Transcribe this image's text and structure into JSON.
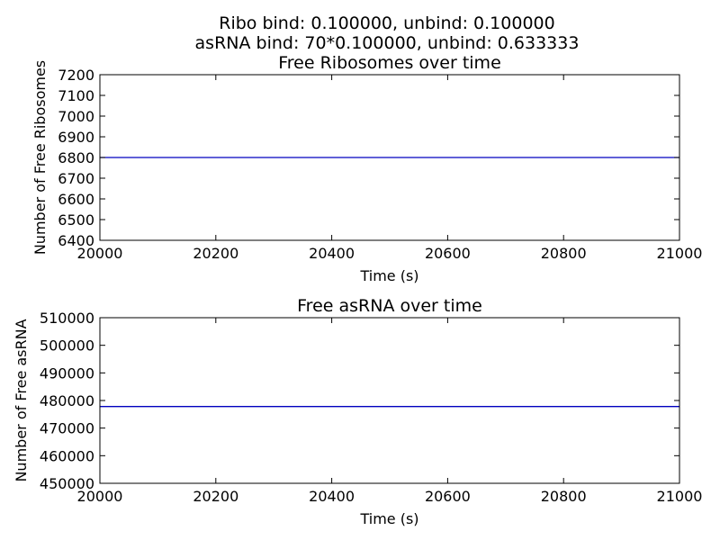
{
  "figure": {
    "suptitle_line1": "Ribo bind: 0.100000, unbind: 0.100000",
    "suptitle_line2": "asRNA bind: 70*0.100000, unbind: 0.633333"
  },
  "colors": {
    "series": "#0000bf",
    "axes": "#000000",
    "background": "#ffffff"
  },
  "chart_data": [
    {
      "type": "line",
      "title": "Free Ribosomes over time",
      "xlabel": "Time (s)",
      "ylabel": "Number of Free Ribosomes",
      "xlim": [
        20000,
        21000
      ],
      "ylim": [
        6400,
        7200
      ],
      "xticks": [
        20000,
        20200,
        20400,
        20600,
        20800,
        21000
      ],
      "xtick_labels": [
        "20000",
        "20200",
        "20400",
        "20600",
        "20800",
        "21000"
      ],
      "yticks": [
        6400,
        6500,
        6600,
        6700,
        6800,
        6900,
        7000,
        7100,
        7200
      ],
      "ytick_labels": [
        "6400",
        "6500",
        "6600",
        "6700",
        "6800",
        "6900",
        "7000",
        "7100",
        "7200"
      ],
      "grid": false,
      "series": [
        {
          "name": "free ribosomes",
          "x": [
            20000,
            21000
          ],
          "y": [
            6800,
            6800
          ]
        }
      ]
    },
    {
      "type": "line",
      "title": "Free asRNA over time",
      "xlabel": "Time (s)",
      "ylabel": "Number of Free asRNA",
      "xlim": [
        20000,
        21000
      ],
      "ylim": [
        450000,
        510000
      ],
      "xticks": [
        20000,
        20200,
        20400,
        20600,
        20800,
        21000
      ],
      "xtick_labels": [
        "20000",
        "20200",
        "20400",
        "20600",
        "20800",
        "21000"
      ],
      "yticks": [
        450000,
        460000,
        470000,
        480000,
        490000,
        500000,
        510000
      ],
      "ytick_labels": [
        "450000",
        "460000",
        "470000",
        "480000",
        "490000",
        "500000",
        "510000"
      ],
      "grid": false,
      "series": [
        {
          "name": "free asRNA",
          "x": [
            20000,
            21000
          ],
          "y": [
            477800,
            477800
          ]
        }
      ]
    }
  ]
}
